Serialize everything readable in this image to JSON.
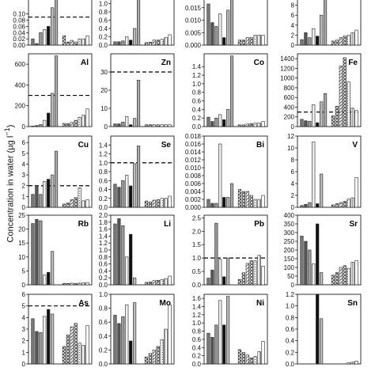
{
  "ylabel_text": "Concentration in water (µg l",
  "ylabel_sup": "−1",
  "ylabel_close": ")",
  "chart_data": [
    {
      "type": "bar",
      "title": "",
      "yticks": [
        "0.00",
        "0.02",
        "0.04",
        "0.06",
        "0.08",
        "0.10"
      ],
      "ylim": [
        0,
        0.16
      ],
      "ref": 0.09,
      "values": [
        0.02,
        0.005,
        0.04,
        0.05,
        0.06,
        0.12,
        0.16,
        0,
        0.03,
        0.01,
        0.015,
        0.01,
        0.02,
        0.02,
        0.03
      ]
    },
    {
      "type": "bar",
      "title": "",
      "yticks": [
        "0.0",
        "0.2",
        "0.4",
        "0.6",
        "0.8",
        "1.0"
      ],
      "ylim": [
        0,
        1.2
      ],
      "ref": null,
      "values": [
        0.08,
        0.08,
        0.1,
        0.2,
        0.12,
        0.4,
        1.2,
        0,
        0.06,
        0.07,
        0.12,
        0.12,
        0.14,
        0.18,
        0.25
      ]
    },
    {
      "type": "bar",
      "title": "",
      "yticks": [
        "0.000",
        "0.005",
        "0.010",
        "0.015"
      ],
      "ylim": [
        0,
        0.02
      ],
      "ref": null,
      "values": [
        0.0165,
        0.009,
        0.0075,
        0.0125,
        0.003,
        0.014,
        0.02,
        0,
        0.002,
        0.002,
        0.003,
        0.003,
        0.004,
        0.004,
        0.004
      ]
    },
    {
      "type": "bar",
      "title": "",
      "yticks": [
        "0",
        "2",
        "4",
        "6",
        "8"
      ],
      "ylim": [
        0,
        10
      ],
      "ref": null,
      "values": [
        1.1,
        2.5,
        1.5,
        3.3,
        1.8,
        6.0,
        10,
        0,
        0.8,
        1.0,
        1.5,
        1.8,
        2.0,
        2.5,
        3.0
      ]
    },
    {
      "type": "bar",
      "title": "Al",
      "yticks": [
        "0",
        "200",
        "400",
        "600"
      ],
      "ylim": [
        0,
        700
      ],
      "ref": 300,
      "values": [
        5,
        10,
        20,
        60,
        130,
        320,
        680,
        0,
        30,
        30,
        40,
        60,
        90,
        110,
        170
      ]
    },
    {
      "type": "bar",
      "title": "Zn",
      "yticks": [
        "0",
        "10",
        "20",
        "30"
      ],
      "ylim": [
        0,
        40
      ],
      "ref": 30,
      "values": [
        1.5,
        1.5,
        2.5,
        5.5,
        1.0,
        4.5,
        25.5,
        0,
        1.0,
        1.0,
        1.0,
        1.0,
        1.0,
        1.0,
        1.0
      ]
    },
    {
      "type": "bar",
      "title": "Co",
      "yticks": [
        "0.0",
        "0.2",
        "0.4",
        "0.6",
        "0.8",
        "1.0",
        "1.2",
        "1.4"
      ],
      "ylim": [
        0,
        1.7
      ],
      "ref": null,
      "values": [
        0.22,
        0.12,
        0.2,
        0.28,
        0.16,
        0.4,
        1.65,
        0,
        0.04,
        0.04,
        0.06,
        0.07,
        0.08,
        0.08,
        0.12
      ]
    },
    {
      "type": "bar",
      "title": "Fe",
      "yticks": [
        "0",
        "200",
        "400",
        "600",
        "800",
        "1000",
        "1200",
        "1400"
      ],
      "ylim": [
        0,
        1500
      ],
      "ref": 300,
      "values": [
        150,
        120,
        110,
        450,
        80,
        510,
        680,
        0,
        220,
        420,
        1250,
        1420,
        920,
        380,
        330
      ]
    },
    {
      "type": "bar",
      "title": "Cu",
      "yticks": [
        "0",
        "1",
        "2",
        "3",
        "4",
        "5",
        "6"
      ],
      "ylim": [
        0,
        6.6
      ],
      "ref": 2,
      "values": [
        1.2,
        2.0,
        1.2,
        2.4,
        2.6,
        3.0,
        5.2,
        0,
        0.3,
        0.4,
        0.7,
        0.9,
        1.8,
        0.6,
        0.7
      ]
    },
    {
      "type": "bar",
      "title": "Se",
      "yticks": [
        "0.0",
        "0.2",
        "0.4",
        "0.6",
        "0.8",
        "1.0",
        "1.2",
        "1.4"
      ],
      "ylim": [
        0,
        1.6
      ],
      "ref": 1.0,
      "values": [
        0.52,
        0.45,
        0.6,
        0.72,
        0.48,
        0.98,
        1.38,
        0,
        0.14,
        0.12,
        0.16,
        0.17,
        0.2,
        0.2,
        0.25
      ]
    },
    {
      "type": "bar",
      "title": "Bi",
      "yticks": [
        "0.000",
        "0.002",
        "0.004",
        "0.006",
        "0.008",
        "0.010",
        "0.012",
        "0.014",
        "0.016",
        "0.018"
      ],
      "ylim": [
        0,
        0.018
      ],
      "ref": null,
      "values": [
        0.002,
        0.001,
        0.001,
        0.016,
        0.0025,
        0.0025,
        0.006,
        0,
        0.0045,
        0.004,
        0.004,
        0.003,
        0.002,
        0.002,
        0.003
      ]
    },
    {
      "type": "bar",
      "title": "V",
      "yticks": [
        "0",
        "2",
        "4",
        "6",
        "8",
        "10",
        "12"
      ],
      "ylim": [
        0,
        12
      ],
      "ref": null,
      "values": [
        0.3,
        0.5,
        0.8,
        11.0,
        0.6,
        5.6,
        0,
        0,
        0.4,
        0.6,
        0.8,
        1.0,
        1.4,
        1.6,
        5.0
      ]
    },
    {
      "type": "bar",
      "title": "Rb",
      "yticks": [
        "0",
        "5",
        "10",
        "15",
        "20",
        "25"
      ],
      "ylim": [
        0,
        25
      ],
      "ref": null,
      "values": [
        22.0,
        23.5,
        23.0,
        3.5,
        4.5,
        12.0,
        0,
        0,
        0.5,
        0.5,
        0.6,
        0.5,
        0.6,
        0.7,
        0.8
      ]
    },
    {
      "type": "bar",
      "title": "Li",
      "yticks": [
        "0.0",
        "0.2",
        "0.4",
        "0.6",
        "0.8",
        "1.0",
        "1.2",
        "1.4",
        "1.6",
        "1.8",
        "2.0"
      ],
      "ylim": [
        0,
        2.0
      ],
      "ref": null,
      "values": [
        1.75,
        1.9,
        1.7,
        0.8,
        1.45,
        0.2,
        0,
        0,
        0.07,
        0.08,
        0.12,
        0.13,
        0.15,
        0.18,
        0.25
      ]
    },
    {
      "type": "bar",
      "title": "Pb",
      "yticks": [
        "0.0",
        "0.5",
        "1.0",
        "1.5",
        "2.0",
        "2.5"
      ],
      "ylim": [
        0,
        2.6
      ],
      "ref": 1.0,
      "values": [
        0.25,
        0.55,
        2.3,
        0.95,
        0.3,
        1.0,
        0,
        0,
        0.2,
        0.45,
        0.8,
        0.9,
        0.9,
        1.1,
        0.7
      ]
    },
    {
      "type": "bar",
      "title": "Sr",
      "yticks": [
        "0",
        "50",
        "100",
        "150",
        "200",
        "250",
        "300",
        "350",
        "400"
      ],
      "ylim": [
        0,
        400
      ],
      "ref": null,
      "values": [
        280,
        250,
        200,
        120,
        350,
        70,
        0,
        0,
        55,
        70,
        100,
        110,
        95,
        130,
        140
      ]
    },
    {
      "type": "bar",
      "title": "As",
      "yticks": [
        "0",
        "1",
        "2",
        "3",
        "4",
        "5",
        "6"
      ],
      "ylim": [
        0,
        6
      ],
      "ref": 5,
      "values": [
        3.9,
        2.8,
        2.7,
        4.1,
        4.7,
        4.3,
        0,
        0,
        1.5,
        2.5,
        3.2,
        3.5,
        1.8,
        1.6,
        3.3
      ]
    },
    {
      "type": "bar",
      "title": "Mo",
      "yticks": [
        "0.0",
        "0.2",
        "0.4",
        "0.6",
        "0.8",
        "1.0"
      ],
      "ylim": [
        0,
        1.0
      ],
      "ref": null,
      "values": [
        0.7,
        0.58,
        0.68,
        0.85,
        0.33,
        0.88,
        0,
        0,
        0.1,
        0.15,
        0.2,
        0.25,
        0.35,
        0.5,
        0.85
      ]
    },
    {
      "type": "bar",
      "title": "Ni",
      "yticks": [
        "0.0",
        "0.2",
        "0.4",
        "0.6",
        "0.8",
        "1.0",
        "1.2",
        "1.4",
        "1.6"
      ],
      "ylim": [
        0,
        1.7
      ],
      "ref": null,
      "values": [
        0.75,
        0.65,
        0.95,
        1.55,
        0.95,
        1.65,
        0,
        0,
        0.35,
        0.28,
        0.22,
        0.15,
        0.18,
        0.3,
        0.55
      ]
    },
    {
      "type": "bar",
      "title": "Sn",
      "yticks": [
        "0.0",
        "0.2",
        "0.4",
        "0.6",
        "0.8",
        "1.0",
        "1.2"
      ],
      "ylim": [
        0,
        1.2
      ],
      "ref": null,
      "values": [
        0,
        0,
        0,
        0,
        1.2,
        0.78,
        0,
        0,
        0,
        0,
        0,
        0,
        0.02,
        0.03,
        0.05
      ]
    }
  ]
}
